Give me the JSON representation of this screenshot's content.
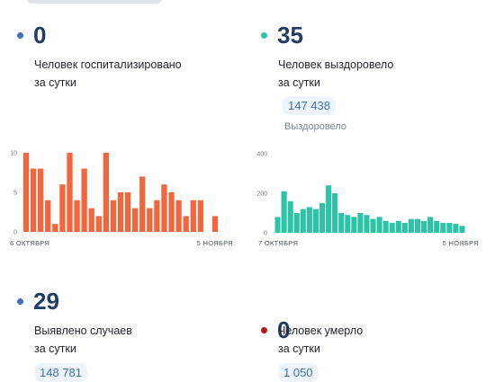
{
  "colors": {
    "blue_dot": "#3f6fb4",
    "green_dot": "#2cc3a6",
    "red_dot": "#b3151b",
    "bar_orange": "#f2663f",
    "bar_teal": "#2cc3a6"
  },
  "stats": {
    "hospitalized": {
      "value": "0",
      "caption_line1": "Человек госпитализировано",
      "caption_line2": "за сутки"
    },
    "recovered": {
      "value": "35",
      "caption_line1": "Человек выздоровело",
      "caption_line2": "за сутки",
      "total": "147 438",
      "total_label": "Выздоровело"
    },
    "detected": {
      "value": "29",
      "caption_line1": "Выявлено случаев",
      "caption_line2": "за сутки",
      "total": "148 781"
    },
    "deaths": {
      "value": "0",
      "caption_line1": "Человек умерло",
      "caption_line2": "за сутки",
      "total": "1 050"
    }
  },
  "chart_data": [
    {
      "type": "bar",
      "series_color": "#f2663f",
      "x_start_label": "6 ОКТЯБРЯ",
      "x_end_label": "5 НОЯБРЯ",
      "yticks": [
        "10",
        "5",
        "0"
      ],
      "ylim": [
        0,
        10
      ],
      "values": [
        10,
        8,
        8,
        4,
        1,
        6,
        10,
        4,
        8,
        3,
        2,
        10,
        4,
        5,
        5,
        3,
        7,
        3,
        4,
        6,
        5,
        4,
        2,
        4,
        4,
        0,
        2
      ]
    },
    {
      "type": "bar",
      "series_color": "#2cc3a6",
      "x_start_label": "7 ОКТЯБРЯ",
      "x_end_label": "5 НОЯБРЯ",
      "yticks": [
        "400",
        "200",
        "0"
      ],
      "ylim": [
        0,
        400
      ],
      "values": [
        80,
        210,
        160,
        100,
        120,
        130,
        120,
        150,
        240,
        200,
        100,
        90,
        80,
        100,
        90,
        70,
        80,
        60,
        50,
        60,
        50,
        70,
        70,
        60,
        80,
        60,
        50,
        50,
        45,
        35
      ]
    }
  ]
}
